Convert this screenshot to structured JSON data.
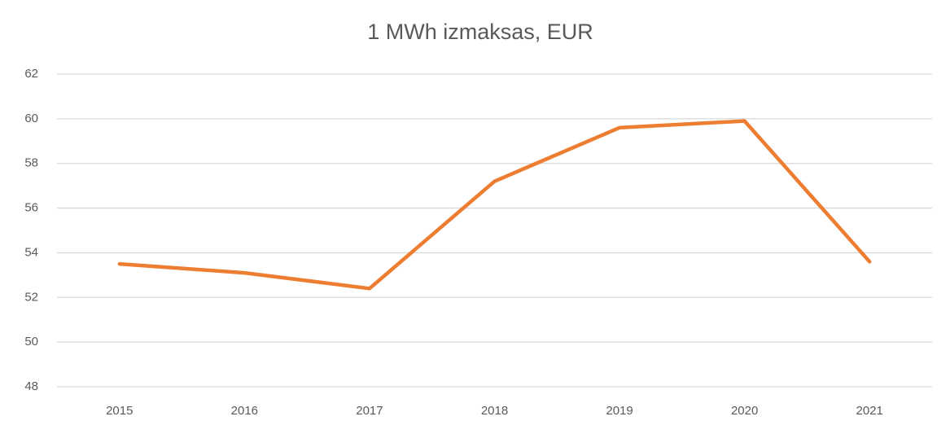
{
  "chart_data": {
    "type": "line",
    "title": "1 MWh izmaksas, EUR",
    "categories": [
      "2015",
      "2016",
      "2017",
      "2018",
      "2019",
      "2020",
      "2021"
    ],
    "series": [
      {
        "name": "1 MWh izmaksas, EUR",
        "color": "#ed7d31",
        "values": [
          53.5,
          53.1,
          52.4,
          57.2,
          59.6,
          59.9,
          53.6
        ]
      }
    ],
    "ylim": [
      48,
      62
    ],
    "yticks": [
      48,
      50,
      52,
      54,
      56,
      58,
      60,
      62
    ],
    "grid": true
  }
}
